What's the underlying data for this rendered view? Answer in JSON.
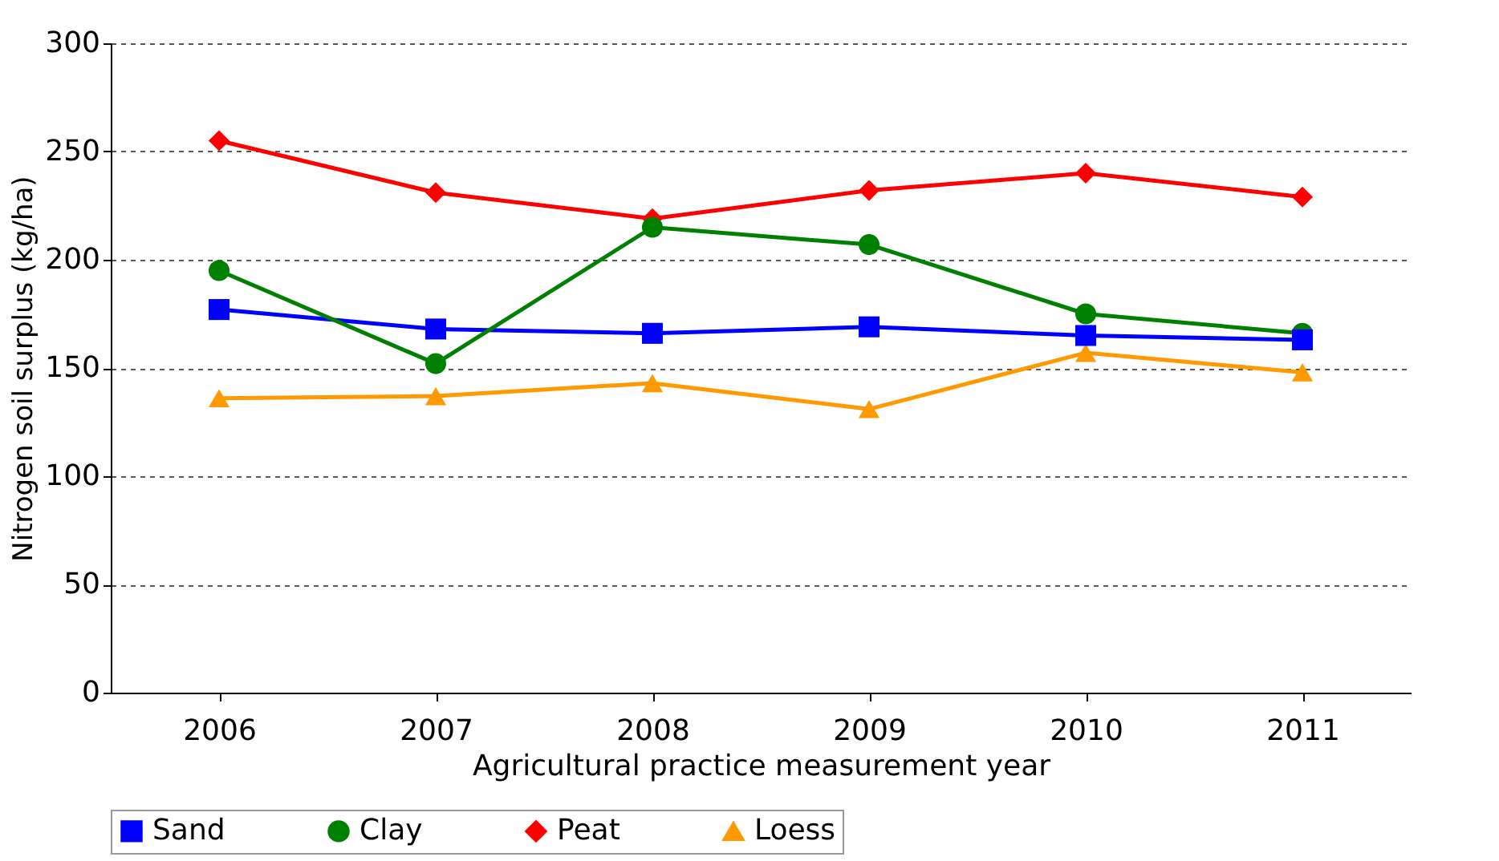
{
  "chart_data": {
    "type": "line",
    "xlabel": "Agricultural practice measurement year",
    "ylabel": "Nitrogen soil surplus (kg/ha)",
    "categories": [
      "2006",
      "2007",
      "2008",
      "2009",
      "2010",
      "2011"
    ],
    "series": [
      {
        "name": "Sand",
        "color": "#0000ff",
        "marker": "square",
        "values": [
          177,
          168,
          166,
          169,
          165,
          163
        ]
      },
      {
        "name": "Clay",
        "color": "#008000",
        "marker": "circle",
        "values": [
          195,
          152,
          215,
          207,
          175,
          166
        ]
      },
      {
        "name": "Peat",
        "color": "#ff0000",
        "marker": "diamond",
        "values": [
          255,
          231,
          219,
          232,
          240,
          229
        ]
      },
      {
        "name": "Loess",
        "color": "#ff9900",
        "marker": "triangle",
        "values": [
          136,
          137,
          143,
          131,
          157,
          148
        ]
      }
    ],
    "ylim": [
      0,
      300
    ],
    "yticks": [
      0,
      50,
      100,
      150,
      200,
      250,
      300
    ],
    "grid": "y",
    "legend": "bottom",
    "line_style": "solid"
  }
}
